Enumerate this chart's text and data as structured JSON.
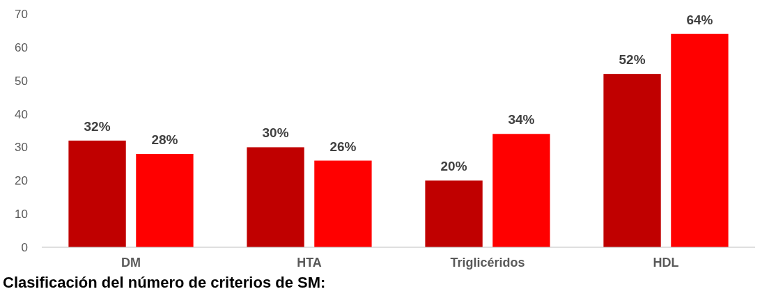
{
  "chart_data": {
    "type": "bar",
    "title": "Clasificación del número de criterios de SM:",
    "categories": [
      "DM",
      "HTA",
      "Triglicéridos",
      "HDL"
    ],
    "series": [
      {
        "color": "#c00000",
        "values": [
          32,
          30,
          20,
          52
        ],
        "value_labels": [
          "32%",
          "30%",
          "20%",
          "52%"
        ]
      },
      {
        "color": "#ff0000",
        "values": [
          28,
          26,
          34,
          64
        ],
        "value_labels": [
          "28%",
          "26%",
          "34%",
          "64%"
        ]
      }
    ],
    "ylim": [
      0,
      70
    ],
    "yticks": [
      0,
      10,
      20,
      30,
      40,
      50,
      60,
      70
    ],
    "grid": false
  }
}
